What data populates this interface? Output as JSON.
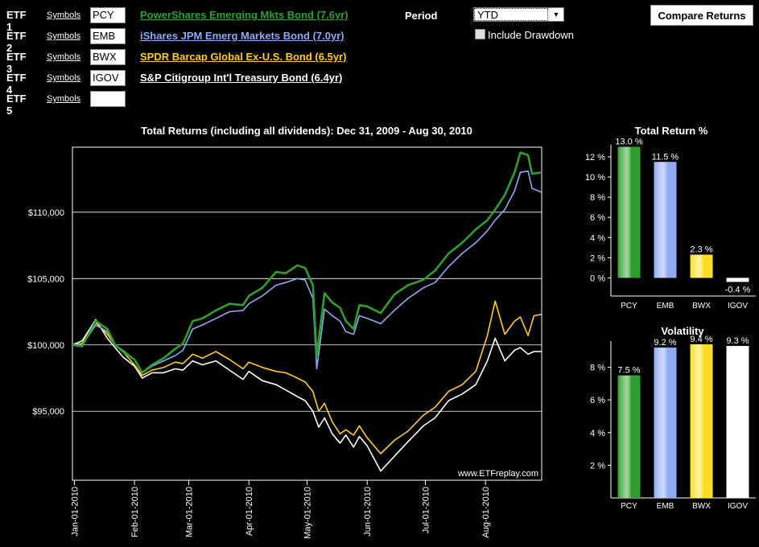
{
  "etfs": [
    {
      "label": "ETF 1",
      "symbols_link": "Symbols",
      "symbol": "PCY",
      "name": "PowerShares Emerging Mkts Bond (7.6yr)",
      "color": "#2e9e2e"
    },
    {
      "label": "ETF 2",
      "symbols_link": "Symbols",
      "symbol": "EMB",
      "name": "iShares JPM Emerg Markets Bond (7.0yr)",
      "color": "#8eaaf0"
    },
    {
      "label": "ETF 3",
      "symbols_link": "Symbols",
      "symbol": "BWX",
      "name": "SPDR Barcap Global Ex-U.S. Bond (6.5yr)",
      "color": "#ffcc22"
    },
    {
      "label": "ETF 4",
      "symbols_link": "Symbols",
      "symbol": "IGOV",
      "name": "S&P Citigroup Int'l Treasury Bond (6.4yr)",
      "color": "#ffffff"
    },
    {
      "label": "ETF 5",
      "symbols_link": "Symbols",
      "symbol": "",
      "name": "",
      "color": "#ffffff"
    }
  ],
  "controls": {
    "period_label": "Period",
    "period_value": "YTD",
    "drawdown_label": "Include Drawdown",
    "drawdown_checked": false,
    "compare_button": "Compare Returns"
  },
  "chart_data": [
    {
      "type": "line",
      "title": "Total Returns (including all dividends): Dec 31, 2009 - Aug 30, 2010",
      "watermark": "www.ETFreplay.com",
      "y_ticks": [
        95000,
        100000,
        105000,
        110000
      ],
      "y_tick_labels": [
        "$95,000",
        "$100,000",
        "$105,000",
        "$110,000"
      ],
      "ylim": [
        89800,
        114900
      ],
      "x_ticks": [
        "2010-01-01",
        "2010-02-01",
        "2010-03-01",
        "2010-04-01",
        "2010-05-01",
        "2010-06-01",
        "2010-07-01",
        "2010-08-01"
      ],
      "x_tick_labels": [
        "Jan-01-2010",
        "Feb-01-2010",
        "Mar-01-2010",
        "Apr-01-2010",
        "May-01-2010",
        "Jun-01-2010",
        "Jul-01-2010",
        "Aug-01-2010"
      ],
      "xlim": [
        "2009-12-31",
        "2010-08-30"
      ],
      "grid": true,
      "series": [
        {
          "name": "PCY",
          "color": "#2e9e2e",
          "points": [
            [
              "2009-12-31",
              100000
            ],
            [
              "2010-01-05",
              99900
            ],
            [
              "2010-01-12",
              101800
            ],
            [
              "2010-01-18",
              101200
            ],
            [
              "2010-01-22",
              100000
            ],
            [
              "2010-01-26",
              99500
            ],
            [
              "2010-02-01",
              98900
            ],
            [
              "2010-02-05",
              97900
            ],
            [
              "2010-02-10",
              98500
            ],
            [
              "2010-02-16",
              99000
            ],
            [
              "2010-02-22",
              99700
            ],
            [
              "2010-02-26",
              100100
            ],
            [
              "2010-03-03",
              101800
            ],
            [
              "2010-03-08",
              102000
            ],
            [
              "2010-03-15",
              102600
            ],
            [
              "2010-03-22",
              103100
            ],
            [
              "2010-03-29",
              103000
            ],
            [
              "2010-04-01",
              103700
            ],
            [
              "2010-04-08",
              104300
            ],
            [
              "2010-04-15",
              105500
            ],
            [
              "2010-04-20",
              105400
            ],
            [
              "2010-04-26",
              106000
            ],
            [
              "2010-04-30",
              105800
            ],
            [
              "2010-05-04",
              104500
            ],
            [
              "2010-05-06",
              99200
            ],
            [
              "2010-05-10",
              103900
            ],
            [
              "2010-05-14",
              103200
            ],
            [
              "2010-05-18",
              102800
            ],
            [
              "2010-05-21",
              101800
            ],
            [
              "2010-05-25",
              101200
            ],
            [
              "2010-05-28",
              103000
            ],
            [
              "2010-06-01",
              102900
            ],
            [
              "2010-06-08",
              102400
            ],
            [
              "2010-06-15",
              103800
            ],
            [
              "2010-06-22",
              104500
            ],
            [
              "2010-06-30",
              104900
            ],
            [
              "2010-07-06",
              105600
            ],
            [
              "2010-07-13",
              106900
            ],
            [
              "2010-07-20",
              107700
            ],
            [
              "2010-07-27",
              108700
            ],
            [
              "2010-08-02",
              109400
            ],
            [
              "2010-08-06",
              110200
            ],
            [
              "2010-08-11",
              111300
            ],
            [
              "2010-08-16",
              113000
            ],
            [
              "2010-08-19",
              114500
            ],
            [
              "2010-08-23",
              114300
            ],
            [
              "2010-08-25",
              112900
            ],
            [
              "2010-08-30",
              113000
            ]
          ]
        },
        {
          "name": "EMB",
          "color": "#8eaaf0",
          "points": [
            [
              "2009-12-31",
              100000
            ],
            [
              "2010-01-05",
              100000
            ],
            [
              "2010-01-12",
              101500
            ],
            [
              "2010-01-18",
              101000
            ],
            [
              "2010-01-22",
              100000
            ],
            [
              "2010-01-26",
              99600
            ],
            [
              "2010-02-01",
              98900
            ],
            [
              "2010-02-05",
              97900
            ],
            [
              "2010-02-10",
              98400
            ],
            [
              "2010-02-16",
              98800
            ],
            [
              "2010-02-22",
              99200
            ],
            [
              "2010-02-26",
              99600
            ],
            [
              "2010-03-03",
              101200
            ],
            [
              "2010-03-08",
              101500
            ],
            [
              "2010-03-15",
              102000
            ],
            [
              "2010-03-22",
              102500
            ],
            [
              "2010-03-29",
              102600
            ],
            [
              "2010-04-01",
              103100
            ],
            [
              "2010-04-08",
              103700
            ],
            [
              "2010-04-15",
              104500
            ],
            [
              "2010-04-20",
              104700
            ],
            [
              "2010-04-26",
              105000
            ],
            [
              "2010-04-30",
              104900
            ],
            [
              "2010-05-04",
              103500
            ],
            [
              "2010-05-06",
              98200
            ],
            [
              "2010-05-10",
              102700
            ],
            [
              "2010-05-14",
              102200
            ],
            [
              "2010-05-18",
              101800
            ],
            [
              "2010-05-21",
              101000
            ],
            [
              "2010-05-25",
              100800
            ],
            [
              "2010-05-28",
              102200
            ],
            [
              "2010-06-01",
              102000
            ],
            [
              "2010-06-08",
              101600
            ],
            [
              "2010-06-15",
              102600
            ],
            [
              "2010-06-22",
              103500
            ],
            [
              "2010-06-30",
              104300
            ],
            [
              "2010-07-06",
              104700
            ],
            [
              "2010-07-13",
              105900
            ],
            [
              "2010-07-20",
              106900
            ],
            [
              "2010-07-27",
              107700
            ],
            [
              "2010-08-02",
              108600
            ],
            [
              "2010-08-06",
              109400
            ],
            [
              "2010-08-11",
              110200
            ],
            [
              "2010-08-16",
              111600
            ],
            [
              "2010-08-19",
              113000
            ],
            [
              "2010-08-23",
              113100
            ],
            [
              "2010-08-25",
              111800
            ],
            [
              "2010-08-30",
              111500
            ]
          ]
        },
        {
          "name": "BWX",
          "color": "#ffcc22",
          "points": [
            [
              "2009-12-31",
              100000
            ],
            [
              "2010-01-05",
              100100
            ],
            [
              "2010-01-12",
              101700
            ],
            [
              "2010-01-18",
              100800
            ],
            [
              "2010-01-22",
              100000
            ],
            [
              "2010-01-26",
              99500
            ],
            [
              "2010-02-01",
              98500
            ],
            [
              "2010-02-05",
              97700
            ],
            [
              "2010-02-10",
              98100
            ],
            [
              "2010-02-16",
              98300
            ],
            [
              "2010-02-22",
              98700
            ],
            [
              "2010-02-26",
              98600
            ],
            [
              "2010-03-03",
              99300
            ],
            [
              "2010-03-08",
              99000
            ],
            [
              "2010-03-15",
              99500
            ],
            [
              "2010-03-22",
              98900
            ],
            [
              "2010-03-29",
              98200
            ],
            [
              "2010-04-01",
              98700
            ],
            [
              "2010-04-08",
              98300
            ],
            [
              "2010-04-15",
              98000
            ],
            [
              "2010-04-20",
              97900
            ],
            [
              "2010-04-26",
              97500
            ],
            [
              "2010-04-30",
              97200
            ],
            [
              "2010-05-04",
              96500
            ],
            [
              "2010-05-07",
              95000
            ],
            [
              "2010-05-10",
              95600
            ],
            [
              "2010-05-14",
              94200
            ],
            [
              "2010-05-18",
              93300
            ],
            [
              "2010-05-21",
              93600
            ],
            [
              "2010-05-25",
              93200
            ],
            [
              "2010-05-28",
              93900
            ],
            [
              "2010-06-01",
              93000
            ],
            [
              "2010-06-08",
              91800
            ],
            [
              "2010-06-15",
              92800
            ],
            [
              "2010-06-22",
              93500
            ],
            [
              "2010-06-30",
              94700
            ],
            [
              "2010-07-06",
              95300
            ],
            [
              "2010-07-13",
              96500
            ],
            [
              "2010-07-20",
              97000
            ],
            [
              "2010-07-27",
              98000
            ],
            [
              "2010-08-02",
              100700
            ],
            [
              "2010-08-06",
              103300
            ],
            [
              "2010-08-11",
              100800
            ],
            [
              "2010-08-16",
              101800
            ],
            [
              "2010-08-19",
              102100
            ],
            [
              "2010-08-23",
              100700
            ],
            [
              "2010-08-26",
              102200
            ],
            [
              "2010-08-30",
              102300
            ]
          ]
        },
        {
          "name": "IGOV",
          "color": "#ffffff",
          "points": [
            [
              "2009-12-31",
              100000
            ],
            [
              "2010-01-05",
              100300
            ],
            [
              "2010-01-12",
              101900
            ],
            [
              "2010-01-18",
              100500
            ],
            [
              "2010-01-22",
              99800
            ],
            [
              "2010-01-26",
              99100
            ],
            [
              "2010-02-01",
              98400
            ],
            [
              "2010-02-05",
              97500
            ],
            [
              "2010-02-10",
              97900
            ],
            [
              "2010-02-16",
              97900
            ],
            [
              "2010-02-22",
              98200
            ],
            [
              "2010-02-26",
              98100
            ],
            [
              "2010-03-03",
              98800
            ],
            [
              "2010-03-08",
              98500
            ],
            [
              "2010-03-15",
              98800
            ],
            [
              "2010-03-22",
              98100
            ],
            [
              "2010-03-29",
              97400
            ],
            [
              "2010-04-01",
              98000
            ],
            [
              "2010-04-08",
              97300
            ],
            [
              "2010-04-15",
              97000
            ],
            [
              "2010-04-20",
              96600
            ],
            [
              "2010-04-26",
              96100
            ],
            [
              "2010-04-30",
              95800
            ],
            [
              "2010-05-04",
              95000
            ],
            [
              "2010-05-07",
              93800
            ],
            [
              "2010-05-10",
              94500
            ],
            [
              "2010-05-14",
              93300
            ],
            [
              "2010-05-18",
              92600
            ],
            [
              "2010-05-21",
              93200
            ],
            [
              "2010-05-25",
              92300
            ],
            [
              "2010-05-28",
              93100
            ],
            [
              "2010-06-01",
              92400
            ],
            [
              "2010-06-08",
              90500
            ],
            [
              "2010-06-15",
              91600
            ],
            [
              "2010-06-22",
              92700
            ],
            [
              "2010-06-30",
              93900
            ],
            [
              "2010-07-06",
              94500
            ],
            [
              "2010-07-13",
              95800
            ],
            [
              "2010-07-20",
              96300
            ],
            [
              "2010-07-27",
              97000
            ],
            [
              "2010-08-02",
              98800
            ],
            [
              "2010-08-06",
              100500
            ],
            [
              "2010-08-11",
              98800
            ],
            [
              "2010-08-16",
              99600
            ],
            [
              "2010-08-19",
              99800
            ],
            [
              "2010-08-23",
              99300
            ],
            [
              "2010-08-26",
              99500
            ],
            [
              "2010-08-30",
              99500
            ]
          ]
        }
      ]
    },
    {
      "type": "bar",
      "title": "Total Return %",
      "categories": [
        "PCY",
        "EMB",
        "BWX",
        "IGOV"
      ],
      "values": [
        13.0,
        11.5,
        2.3,
        -0.4
      ],
      "value_labels": [
        "13.0 %",
        "11.5 %",
        "2.3 %",
        "-0.4 %"
      ],
      "colors": [
        "#2e9e2e",
        "#8eaaf0",
        "#ffdd22",
        "#ffffff"
      ],
      "y_ticks": [
        0,
        2,
        4,
        6,
        8,
        10,
        12
      ],
      "y_tick_labels": [
        "0 %",
        "2 %",
        "4 %",
        "6 %",
        "8 %",
        "10 %",
        "12 %"
      ],
      "ylim": [
        -1.8,
        13.2
      ],
      "grid": false
    },
    {
      "type": "bar",
      "title": "Volatility",
      "categories": [
        "PCY",
        "EMB",
        "BWX",
        "IGOV"
      ],
      "values": [
        7.5,
        9.2,
        9.4,
        9.3
      ],
      "value_labels": [
        "7.5 %",
        "9.2 %",
        "9.4 %",
        "9.3 %"
      ],
      "colors": [
        "#2e9e2e",
        "#8eaaf0",
        "#ffdd22",
        "#ffffff"
      ],
      "y_ticks": [
        2,
        4,
        6,
        8
      ],
      "y_tick_labels": [
        "2 %",
        "4 %",
        "6 %",
        "8 %"
      ],
      "ylim": [
        0,
        9.6
      ],
      "grid": false
    }
  ]
}
